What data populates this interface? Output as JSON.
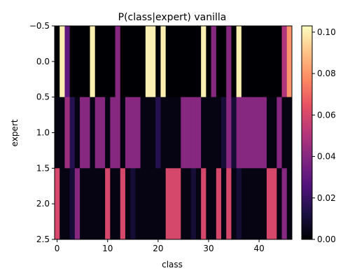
{
  "chart_data": {
    "type": "heatmap",
    "title": "P(class|expert) vanilla",
    "xlabel": "class",
    "ylabel": "expert",
    "x_ticks": [
      "0",
      "10",
      "20",
      "30",
      "40"
    ],
    "y_ticks": [
      "−0.5",
      "0.0",
      "0.5",
      "1.0",
      "1.5",
      "2.0",
      "2.5"
    ],
    "colorbar_ticks": [
      "0.00",
      "0.02",
      "0.04",
      "0.06",
      "0.08",
      "0.10"
    ],
    "colorbar_range": [
      0,
      0.103
    ],
    "colormap": "magma",
    "x_range": [
      -0.5,
      46.5
    ],
    "y_range": [
      2.5,
      -0.5
    ],
    "experts": [
      0,
      1,
      2
    ],
    "classes": 47,
    "values": [
      [
        0.0,
        0.1,
        0.03,
        0.0,
        0.0,
        0.0,
        0.0,
        0.1,
        0.0,
        0.0,
        0.0,
        0.0,
        0.04,
        0.0,
        0.0,
        0.0,
        0.0,
        0.0,
        0.1,
        0.1,
        0.0,
        0.1,
        0.0,
        0.0,
        0.0,
        0.0,
        0.0,
        0.0,
        0.0,
        0.1,
        0.0,
        0.04,
        0.0,
        0.0,
        0.04,
        0.0,
        0.1,
        0.0,
        0.0,
        0.0,
        0.0,
        0.0,
        0.0,
        0.0,
        0.0,
        0.05,
        0.08
      ],
      [
        0.003,
        0.003,
        0.045,
        0.015,
        0.003,
        0.04,
        0.04,
        0.003,
        0.04,
        0.04,
        0.003,
        0.04,
        0.04,
        0.003,
        0.04,
        0.04,
        0.04,
        0.003,
        0.003,
        0.003,
        0.015,
        0.003,
        0.003,
        0.003,
        0.003,
        0.04,
        0.04,
        0.04,
        0.04,
        0.003,
        0.003,
        0.003,
        0.003,
        0.01,
        0.04,
        0.01,
        0.04,
        0.04,
        0.04,
        0.04,
        0.04,
        0.04,
        0.003,
        0.003,
        0.04,
        0.003,
        0.003
      ],
      [
        0.06,
        0.003,
        0.003,
        0.01,
        0.04,
        0.003,
        0.003,
        0.003,
        0.003,
        0.003,
        0.06,
        0.003,
        0.003,
        0.06,
        0.003,
        0.01,
        0.003,
        0.003,
        0.003,
        0.003,
        0.003,
        0.003,
        0.06,
        0.06,
        0.06,
        0.003,
        0.003,
        0.01,
        0.003,
        0.06,
        0.003,
        0.003,
        0.06,
        0.003,
        0.06,
        0.003,
        0.01,
        0.003,
        0.003,
        0.003,
        0.003,
        0.003,
        0.06,
        0.06,
        0.003,
        0.04,
        0.003
      ]
    ]
  }
}
